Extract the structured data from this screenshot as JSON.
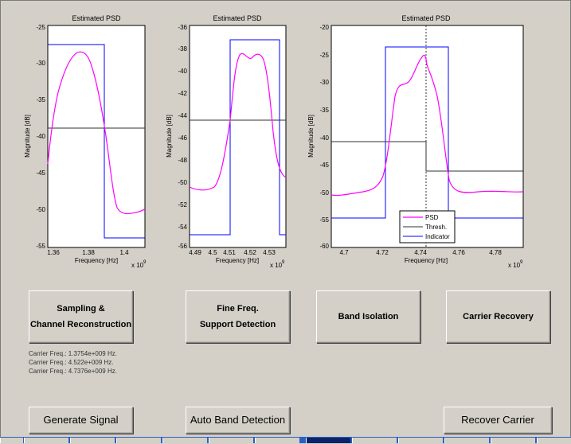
{
  "plots": [
    {
      "title": "Estimated PSD",
      "ylabel": "Magnitude [dB]",
      "xlabel": "Frequency [Hz]",
      "exponent": "x 10",
      "exponent_power": "9",
      "yticks": [
        "-25",
        "-30",
        "-35",
        "-40",
        "-45",
        "-50",
        "-55"
      ],
      "xticks": [
        "1.36",
        "1.38",
        "1.4"
      ]
    },
    {
      "title": "Estimated PSD",
      "ylabel": "Magnitude [dB]",
      "xlabel": "Frequency [Hz]",
      "exponent": "x 10",
      "exponent_power": "9",
      "yticks": [
        "-36",
        "-38",
        "-40",
        "-42",
        "-44",
        "-46",
        "-48",
        "-50",
        "-52",
        "-54",
        "-56"
      ],
      "xticks": [
        "4.49",
        "4.5",
        "4.51",
        "4.52",
        "4.53"
      ]
    },
    {
      "title": "Estimated PSD",
      "ylabel": "Magnitude [dB]",
      "xlabel": "Frequency [Hz]",
      "exponent": "x 10",
      "exponent_power": "9",
      "yticks": [
        "-20",
        "-25",
        "-30",
        "-35",
        "-40",
        "-45",
        "-50",
        "-55",
        "-60"
      ],
      "xticks": [
        "4.7",
        "4.72",
        "4.74",
        "4.76",
        "4.78"
      ],
      "legend": [
        "PSD",
        "Thresh.",
        "Indicator"
      ]
    }
  ],
  "buttons": {
    "sampling_line1": "Sampling &",
    "sampling_line2": "Channel Reconstruction",
    "fine_line1": "Fine Freq.",
    "fine_line2": "Support Detection",
    "band_isolation": "Band Isolation",
    "carrier_recovery": "Carrier Recovery",
    "generate_signal": "Generate Signal",
    "auto_band_detection": "Auto Band Detection",
    "recover_carrier": "Recover Carrier"
  },
  "carrier_info": [
    "Carrier Freq.: 1.3754e+009 Hz.",
    "Carrier Freq.: 4.522e+009 Hz.",
    "Carrier Freq.: 4.7376e+009 Hz."
  ],
  "colors": {
    "psd": "#ff00ff",
    "threshold": "#303030",
    "indicator": "#0000ff",
    "background": "#d4d0c8"
  }
}
